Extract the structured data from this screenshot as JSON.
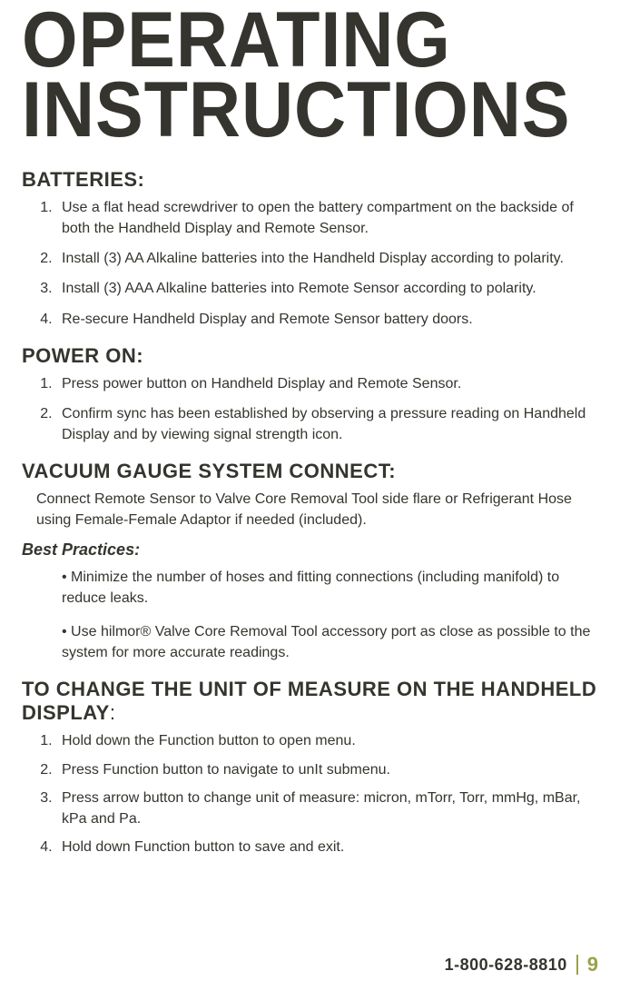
{
  "title_line1": "OPERATING",
  "title_line2": "INSTRUCTIONS",
  "sections": {
    "batteries": {
      "heading": "BATTERIES:",
      "items": [
        "Use a flat head screwdriver to open the battery compartment on the backside of both the Handheld Display and Remote Sensor.",
        "Install (3) AA Alkaline batteries into the Handheld Display according to polarity.",
        "Install (3) AAA Alkaline batteries into Remote Sensor according to polarity.",
        "Re-secure Handheld Display and Remote Sensor battery doors."
      ]
    },
    "power": {
      "heading": "POWER ON:",
      "items": [
        "Press power button on Handheld Display and Remote Sensor.",
        "Confirm sync has been established by observing a pressure reading on Handheld Display and by viewing signal strength icon."
      ]
    },
    "connect": {
      "heading": "VACUUM GAUGE SYSTEM CONNECT:",
      "para": "Connect Remote Sensor to Valve Core Removal Tool side flare or Refrigerant Hose using Female-Female Adaptor if needed (included)."
    },
    "best": {
      "heading": "Best Practices:",
      "bullets": [
        "• Minimize the number of hoses and fitting connections (including manifold) to reduce leaks.",
        "• Use hilmor® Valve Core Removal Tool accessory port as close as possible  to the system for more accurate readings."
      ]
    },
    "unit": {
      "heading": "TO CHANGE THE UNIT OF MEASURE ON THE HANDHELD DISPLAY",
      "colon": ":",
      "items": [
        "Hold down the Function button to open menu.",
        "Press Function button to navigate to unIt submenu.",
        "Press arrow button to change unit of measure: micron, mTorr, Torr, mmHg, mBar, kPa and Pa.",
        "Hold down Function button to save and exit."
      ]
    }
  },
  "footer": {
    "phone": "1-800-628-8810",
    "page": "9"
  },
  "colors": {
    "text": "#35342e",
    "accent": "#9aa24a",
    "background": "#ffffff"
  }
}
